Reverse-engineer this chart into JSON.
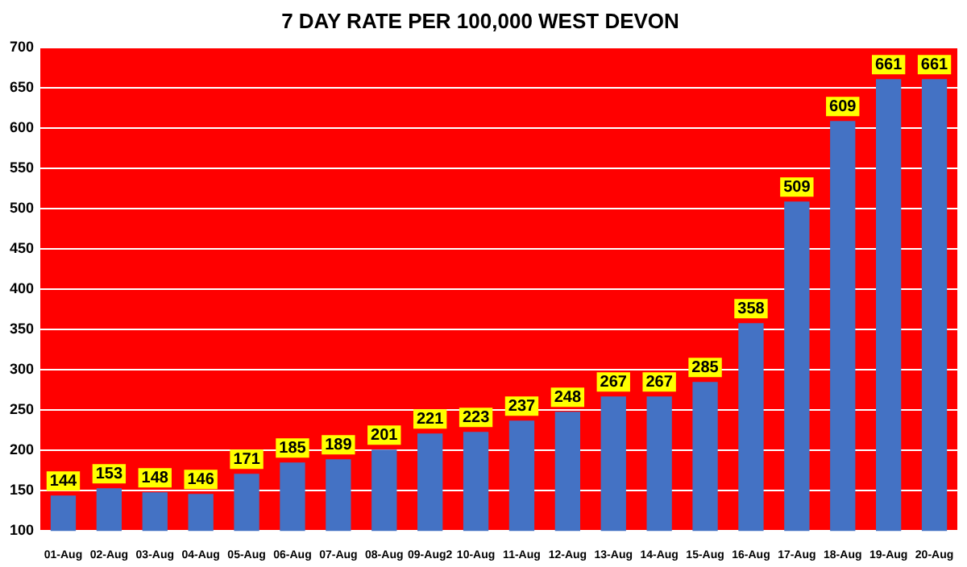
{
  "chart_data": {
    "type": "bar",
    "title": "7 DAY RATE PER 100,000 WEST DEVON",
    "categories": [
      "01-Aug",
      "02-Aug",
      "03-Aug",
      "04-Aug",
      "05-Aug",
      "06-Aug",
      "07-Aug",
      "08-Aug",
      "09-Aug2",
      "10-Aug",
      "11-Aug",
      "12-Aug",
      "13-Aug",
      "14-Aug",
      "15-Aug",
      "16-Aug",
      "17-Aug",
      "18-Aug",
      "19-Aug",
      "20-Aug"
    ],
    "values": [
      144,
      153,
      148,
      146,
      171,
      185,
      189,
      201,
      221,
      223,
      237,
      248,
      267,
      267,
      285,
      358,
      509,
      609,
      661,
      661
    ],
    "color": "#4472c4",
    "ylim": [
      100,
      700
    ],
    "yticks": [
      100,
      150,
      200,
      250,
      300,
      350,
      400,
      450,
      500,
      550,
      600,
      650,
      700
    ],
    "grid": "y",
    "data_labels": true,
    "legend": false
  }
}
